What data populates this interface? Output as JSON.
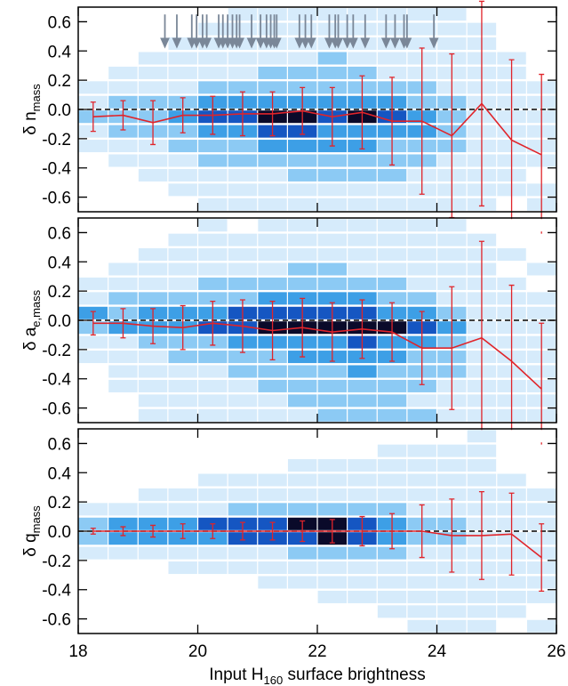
{
  "chart_data": [
    {
      "type": "heatmap",
      "ylabel": "δ n",
      "ylabel_sub": "mass",
      "xlim": [
        18,
        26
      ],
      "ylim": [
        -0.7,
        0.7
      ],
      "xticks": [
        18,
        20,
        22,
        24,
        26
      ],
      "yticks": [
        -0.6,
        -0.4,
        -0.2,
        {
          "value": 0,
          "label": "0.0"
        },
        0.2,
        0.4,
        0.6
      ],
      "reference_line": 0,
      "line_color": "#e0242a",
      "arrow_color": "#7a8798",
      "colors": [
        "#ffffff",
        "#d6ebfb",
        "#8ccaf4",
        "#3d9fe6",
        "#1556c2",
        "#0a0a2a"
      ],
      "heatmap": {
        "xbins": [
          18,
          18.5,
          19,
          19.5,
          20,
          20.5,
          21,
          21.5,
          22,
          22.5,
          23,
          23.5,
          24,
          24.5,
          25,
          25.5,
          26
        ],
        "ybins": [
          -0.7,
          -0.6,
          -0.5,
          -0.4,
          -0.3,
          -0.2,
          -0.1,
          0,
          0.1,
          0.2,
          0.3,
          0.4,
          0.5,
          0.6,
          0.7
        ],
        "counts": [
          [
            0,
            0,
            0,
            0,
            1,
            1,
            1,
            1,
            1,
            1,
            1,
            1,
            1,
            1,
            0,
            1
          ],
          [
            0,
            0,
            0,
            1,
            1,
            1,
            1,
            1,
            1,
            1,
            1,
            1,
            1,
            1,
            1,
            1
          ],
          [
            0,
            0,
            1,
            1,
            1,
            1,
            1,
            2,
            2,
            2,
            2,
            1,
            1,
            1,
            1,
            0
          ],
          [
            0,
            1,
            1,
            1,
            2,
            2,
            2,
            2,
            2,
            2,
            2,
            2,
            1,
            1,
            1,
            1
          ],
          [
            1,
            1,
            1,
            2,
            2,
            2,
            3,
            3,
            3,
            3,
            2,
            2,
            2,
            1,
            1,
            1
          ],
          [
            1,
            2,
            2,
            2,
            3,
            3,
            4,
            4,
            3,
            3,
            3,
            3,
            2,
            1,
            1,
            1
          ],
          [
            2,
            2,
            2,
            3,
            4,
            4,
            5,
            5,
            4,
            5,
            4,
            3,
            2,
            1,
            1,
            1
          ],
          [
            1,
            2,
            2,
            2,
            3,
            3,
            3,
            3,
            3,
            3,
            3,
            2,
            2,
            1,
            1,
            1
          ],
          [
            1,
            1,
            1,
            1,
            2,
            2,
            2,
            2,
            2,
            2,
            2,
            2,
            1,
            1,
            1,
            1
          ],
          [
            0,
            1,
            1,
            1,
            1,
            1,
            2,
            2,
            2,
            2,
            1,
            1,
            1,
            1,
            1,
            0
          ],
          [
            0,
            0,
            1,
            1,
            1,
            1,
            1,
            1,
            2,
            1,
            1,
            1,
            1,
            1,
            1,
            0
          ],
          [
            0,
            0,
            0,
            1,
            1,
            1,
            1,
            1,
            1,
            1,
            1,
            1,
            1,
            1,
            0,
            0
          ],
          [
            0,
            0,
            0,
            0,
            1,
            1,
            1,
            1,
            1,
            1,
            1,
            1,
            1,
            1,
            0,
            0
          ],
          [
            0,
            0,
            0,
            0,
            0,
            1,
            1,
            1,
            1,
            1,
            1,
            1,
            1,
            0,
            0,
            0
          ]
        ]
      },
      "x": [
        18.25,
        18.75,
        19.25,
        19.75,
        20.25,
        20.75,
        21.25,
        21.75,
        22.25,
        22.75,
        23.25,
        23.75,
        24.25,
        24.75,
        25.25,
        25.75
      ],
      "values": [
        -0.05,
        -0.04,
        -0.09,
        -0.04,
        -0.04,
        -0.03,
        -0.03,
        -0.01,
        -0.05,
        -0.02,
        -0.08,
        -0.08,
        -0.18,
        0.04,
        -0.21,
        -0.31
      ],
      "errors": [
        0.1,
        0.1,
        0.15,
        0.12,
        0.13,
        0.15,
        0.15,
        0.16,
        0.2,
        0.25,
        0.3,
        0.5,
        0.56,
        0.7,
        0.55,
        0.55
      ],
      "arrows": [
        19.45,
        19.65,
        19.9,
        19.98,
        20.08,
        20.15,
        20.35,
        20.42,
        20.5,
        20.58,
        20.65,
        20.7,
        20.9,
        21.05,
        21.15,
        21.22,
        21.28,
        21.32,
        21.7,
        21.8,
        21.9,
        22.2,
        22.3,
        22.35,
        22.5,
        22.6,
        22.8,
        23.15,
        23.3,
        23.45,
        23.5,
        23.95
      ]
    },
    {
      "type": "heatmap",
      "ylabel": "δ a",
      "ylabel_sub": "e,mass",
      "xlim": [
        18,
        26
      ],
      "ylim": [
        -0.7,
        0.7
      ],
      "xticks": [
        18,
        20,
        22,
        24,
        26
      ],
      "yticks": [
        -0.6,
        -0.4,
        -0.2,
        {
          "value": 0,
          "label": "0.0"
        },
        0.2,
        0.4,
        0.6
      ],
      "reference_line": 0,
      "line_color": "#e0242a",
      "colors": [
        "#ffffff",
        "#d6ebfb",
        "#8ccaf4",
        "#3d9fe6",
        "#1556c2",
        "#0a0a2a"
      ],
      "heatmap": {
        "xbins": [
          18,
          18.5,
          19,
          19.5,
          20,
          20.5,
          21,
          21.5,
          22,
          22.5,
          23,
          23.5,
          24,
          24.5,
          25,
          25.5,
          26
        ],
        "ybins": [
          -0.7,
          -0.6,
          -0.5,
          -0.4,
          -0.3,
          -0.2,
          -0.1,
          0,
          0.1,
          0.2,
          0.3,
          0.4,
          0.5,
          0.6,
          0.7
        ],
        "counts": [
          [
            0,
            0,
            1,
            1,
            1,
            1,
            1,
            1,
            2,
            2,
            2,
            2,
            1,
            1,
            1,
            1
          ],
          [
            0,
            0,
            1,
            1,
            1,
            1,
            1,
            2,
            2,
            2,
            2,
            1,
            1,
            1,
            1,
            1
          ],
          [
            0,
            1,
            1,
            1,
            1,
            1,
            2,
            2,
            2,
            2,
            2,
            2,
            1,
            1,
            1,
            1
          ],
          [
            0,
            1,
            1,
            1,
            1,
            2,
            2,
            2,
            2,
            3,
            2,
            2,
            2,
            1,
            1,
            1
          ],
          [
            1,
            1,
            1,
            2,
            2,
            2,
            2,
            3,
            3,
            3,
            3,
            2,
            2,
            1,
            1,
            1
          ],
          [
            1,
            1,
            2,
            2,
            2,
            3,
            3,
            3,
            3,
            4,
            3,
            3,
            2,
            1,
            1,
            1
          ],
          [
            2,
            3,
            3,
            3,
            4,
            4,
            5,
            5,
            5,
            5,
            5,
            4,
            3,
            1,
            1,
            1
          ],
          [
            3,
            2,
            3,
            3,
            3,
            4,
            4,
            4,
            4,
            4,
            3,
            3,
            2,
            1,
            1,
            1
          ],
          [
            1,
            2,
            2,
            2,
            2,
            2,
            3,
            3,
            3,
            3,
            2,
            2,
            1,
            1,
            1,
            1
          ],
          [
            1,
            1,
            1,
            1,
            2,
            2,
            2,
            2,
            2,
            2,
            2,
            1,
            1,
            1,
            1,
            0
          ],
          [
            0,
            1,
            1,
            1,
            1,
            1,
            1,
            2,
            2,
            1,
            1,
            1,
            1,
            1,
            0,
            1
          ],
          [
            0,
            0,
            1,
            1,
            1,
            1,
            1,
            1,
            1,
            1,
            1,
            1,
            1,
            1,
            1,
            0
          ],
          [
            0,
            0,
            0,
            1,
            1,
            1,
            1,
            1,
            1,
            1,
            1,
            1,
            1,
            1,
            0,
            0
          ],
          [
            0,
            0,
            0,
            0,
            1,
            0,
            1,
            1,
            1,
            1,
            1,
            1,
            1,
            0,
            0,
            0
          ]
        ]
      },
      "x": [
        18.25,
        18.75,
        19.25,
        19.75,
        20.25,
        20.75,
        21.25,
        21.75,
        22.25,
        22.75,
        23.25,
        23.75,
        24.25,
        24.75,
        25.25,
        25.75
      ],
      "values": [
        -0.02,
        -0.02,
        -0.04,
        -0.05,
        -0.02,
        -0.04,
        -0.07,
        -0.05,
        -0.08,
        -0.06,
        -0.08,
        -0.19,
        -0.19,
        -0.12,
        -0.28,
        -0.47
      ],
      "errors": [
        0.08,
        0.1,
        0.12,
        0.15,
        0.15,
        0.18,
        0.2,
        0.2,
        0.2,
        0.2,
        0.2,
        0.25,
        0.42,
        0.66,
        0.52,
        0.45
      ]
    },
    {
      "type": "heatmap",
      "ylabel": "δ q",
      "ylabel_sub": "mass",
      "xlabel": "Input H",
      "xlabel_sub": "160",
      "xlabel_tail": " surface brightness",
      "show_xtick_labels": true,
      "xlim": [
        18,
        26
      ],
      "ylim": [
        -0.7,
        0.7
      ],
      "xticks": [
        18,
        20,
        22,
        24,
        26
      ],
      "yticks": [
        -0.6,
        -0.4,
        -0.2,
        {
          "value": 0,
          "label": "0.0"
        },
        0.2,
        0.4,
        0.6
      ],
      "reference_line": 0,
      "line_color": "#e0242a",
      "colors": [
        "#ffffff",
        "#d6ebfb",
        "#8ccaf4",
        "#3d9fe6",
        "#1556c2",
        "#0a0a2a"
      ],
      "heatmap": {
        "xbins": [
          18,
          18.5,
          19,
          19.5,
          20,
          20.5,
          21,
          21.5,
          22,
          22.5,
          23,
          23.5,
          24,
          24.5,
          25,
          25.5,
          26
        ],
        "ybins": [
          -0.7,
          -0.6,
          -0.5,
          -0.4,
          -0.3,
          -0.2,
          -0.1,
          0,
          0.1,
          0.2,
          0.3,
          0.4,
          0.5,
          0.6,
          0.7
        ],
        "counts": [
          [
            0,
            0,
            0,
            0,
            0,
            0,
            0,
            0,
            0,
            0,
            0,
            1,
            1,
            1,
            0,
            1
          ],
          [
            0,
            0,
            0,
            0,
            0,
            0,
            0,
            0,
            0,
            0,
            1,
            1,
            1,
            1,
            1,
            0
          ],
          [
            0,
            0,
            0,
            0,
            0,
            0,
            0,
            0,
            1,
            1,
            1,
            1,
            1,
            1,
            1,
            1
          ],
          [
            0,
            0,
            0,
            0,
            0,
            0,
            1,
            1,
            1,
            1,
            1,
            1,
            1,
            1,
            1,
            1
          ],
          [
            0,
            0,
            0,
            1,
            1,
            1,
            1,
            1,
            1,
            1,
            1,
            1,
            1,
            1,
            1,
            1
          ],
          [
            1,
            1,
            1,
            1,
            1,
            1,
            1,
            2,
            2,
            2,
            2,
            1,
            1,
            1,
            1,
            1
          ],
          [
            2,
            3,
            3,
            3,
            3,
            4,
            4,
            4,
            5,
            4,
            3,
            2,
            2,
            1,
            1,
            1
          ],
          [
            2,
            3,
            3,
            3,
            4,
            4,
            4,
            5,
            5,
            4,
            3,
            2,
            2,
            1,
            1,
            1
          ],
          [
            1,
            1,
            1,
            1,
            1,
            2,
            2,
            2,
            2,
            2,
            2,
            1,
            1,
            1,
            1,
            1
          ],
          [
            0,
            0,
            1,
            1,
            1,
            1,
            1,
            1,
            1,
            1,
            1,
            1,
            1,
            1,
            1,
            1
          ],
          [
            0,
            0,
            0,
            0,
            1,
            1,
            1,
            1,
            1,
            1,
            1,
            1,
            1,
            1,
            1,
            0
          ],
          [
            0,
            0,
            0,
            0,
            0,
            0,
            0,
            1,
            1,
            1,
            1,
            1,
            1,
            1,
            0,
            0
          ],
          [
            0,
            0,
            0,
            0,
            0,
            0,
            0,
            0,
            0,
            0,
            1,
            1,
            1,
            1,
            0,
            0
          ],
          [
            0,
            0,
            0,
            0,
            0,
            0,
            0,
            0,
            0,
            0,
            0,
            0,
            0,
            1,
            0,
            0
          ]
        ]
      },
      "x": [
        18.25,
        18.75,
        19.25,
        19.75,
        20.25,
        20.75,
        21.25,
        21.75,
        22.25,
        22.75,
        23.25,
        23.75,
        24.25,
        24.75,
        25.25,
        25.75
      ],
      "values": [
        0,
        0,
        0,
        0,
        0,
        0,
        0,
        0,
        0,
        0,
        0,
        0,
        -0.03,
        -0.03,
        -0.02,
        -0.18
      ],
      "errors": [
        0.02,
        0.03,
        0.04,
        0.05,
        0.05,
        0.06,
        0.06,
        0.07,
        0.08,
        0.1,
        0.12,
        0.18,
        0.25,
        0.3,
        0.28,
        0.23
      ]
    }
  ]
}
